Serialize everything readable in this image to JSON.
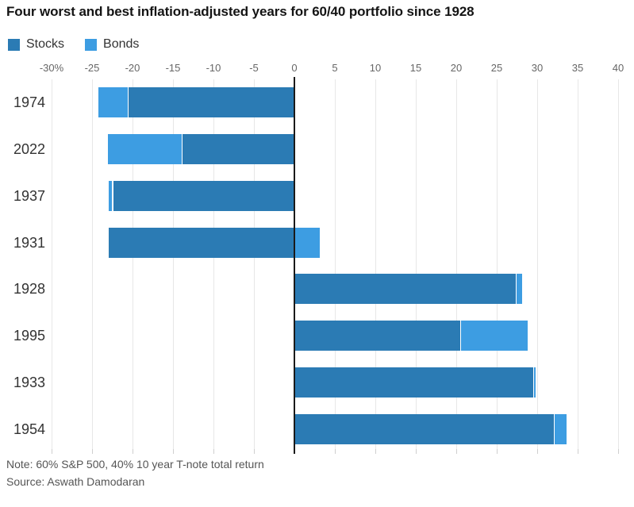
{
  "title": "Four worst and best inflation-adjusted years for 60/40 portfolio since 1928",
  "note": "Note: 60% S&P 500, 40% 10 year T-note total return",
  "source": "Source: Aswath Damodaran",
  "colors": {
    "stocks": "#2b7bb4",
    "bonds": "#3d9de2",
    "axis": "#1a1a1a",
    "gridline": "#e7e7e7",
    "tick_text": "#666666",
    "year_text": "#333333"
  },
  "legend": [
    {
      "label": "Stocks",
      "color": "#2b7bb4"
    },
    {
      "label": "Bonds",
      "color": "#3d9de2"
    }
  ],
  "chart_data": {
    "type": "bar",
    "orientation": "horizontal",
    "stacked": true,
    "title": "Four worst and best inflation-adjusted years for 60/40 portfolio since 1928",
    "categories": [
      "1974",
      "2022",
      "1937",
      "1931",
      "1928",
      "1995",
      "1933",
      "1954"
    ],
    "series": [
      {
        "name": "Stocks",
        "color": "#2b7bb4",
        "values": [
          -20.5,
          -13.8,
          -22.4,
          -22.9,
          27.3,
          20.5,
          29.5,
          32.1
        ]
      },
      {
        "name": "Bonds",
        "color": "#3d9de2",
        "values": [
          -3.7,
          -9.2,
          -0.5,
          3.1,
          0.8,
          8.3,
          0.3,
          1.5
        ]
      }
    ],
    "totals": [
      -24.2,
      -23.0,
      -22.9,
      -19.8,
      28.1,
      28.8,
      29.8,
      33.6
    ],
    "xlabel": "",
    "ylabel": "",
    "xlim": [
      -30,
      40
    ],
    "x_ticks": [
      -30,
      -25,
      -20,
      -15,
      -10,
      -5,
      0,
      5,
      10,
      15,
      20,
      25,
      30,
      35,
      40
    ],
    "x_tick_labels": [
      "-30%",
      "-25",
      "-20",
      "-15",
      "-10",
      "-5",
      "0",
      "5",
      "10",
      "15",
      "20",
      "25",
      "30",
      "35",
      "40"
    ],
    "grid": true,
    "legend_position": "top-left",
    "value_unit": "percentage points of real return contribution"
  }
}
